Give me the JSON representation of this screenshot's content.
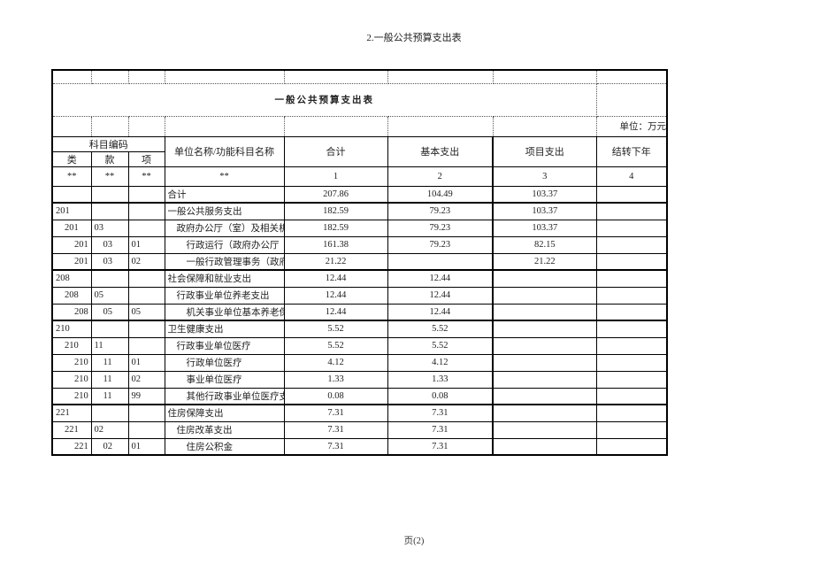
{
  "page": {
    "header_title": "2.一般公共预算支出表",
    "footer": "页(2)"
  },
  "table": {
    "title": "一般公共预算支出表",
    "unit_note": "单位：万元",
    "header": {
      "code_group": "科目编码",
      "code_cols": [
        "类",
        "款",
        "项"
      ],
      "name_col": "单位名称/功能科目名称",
      "value_cols": [
        "合计",
        "基本支出",
        "项目支出",
        "结转下年"
      ]
    },
    "mask_row": [
      "**",
      "**",
      "**",
      "**",
      "1",
      "2",
      "3",
      "4"
    ],
    "rows": [
      {
        "cls": "",
        "sec": "",
        "itm": "",
        "name": "合计",
        "level": 0,
        "total": "207.86",
        "basic": "104.49",
        "project": "103.37",
        "carry": "",
        "thick_top": false
      },
      {
        "cls": "201",
        "sec": "",
        "itm": "",
        "name": "一般公共服务支出",
        "level": 1,
        "total": "182.59",
        "basic": "79.23",
        "project": "103.37",
        "carry": "",
        "thick_top": true
      },
      {
        "cls": "201",
        "sec": "03",
        "itm": "",
        "name": "政府办公厅（室）及相关机",
        "level": 2,
        "total": "182.59",
        "basic": "79.23",
        "project": "103.37",
        "carry": "",
        "thick_top": false
      },
      {
        "cls": "201",
        "sec": "03",
        "itm": "01",
        "name": "行政运行（政府办公厅（",
        "level": 3,
        "total": "161.38",
        "basic": "79.23",
        "project": "82.15",
        "carry": "",
        "thick_top": false
      },
      {
        "cls": "201",
        "sec": "03",
        "itm": "02",
        "name": "一般行政管理事务（政府",
        "level": 3,
        "total": "21.22",
        "basic": "",
        "project": "21.22",
        "carry": "",
        "thick_top": false
      },
      {
        "cls": "208",
        "sec": "",
        "itm": "",
        "name": "社会保障和就业支出",
        "level": 1,
        "total": "12.44",
        "basic": "12.44",
        "project": "",
        "carry": "",
        "thick_top": true
      },
      {
        "cls": "208",
        "sec": "05",
        "itm": "",
        "name": "行政事业单位养老支出",
        "level": 2,
        "total": "12.44",
        "basic": "12.44",
        "project": "",
        "carry": "",
        "thick_top": false
      },
      {
        "cls": "208",
        "sec": "05",
        "itm": "05",
        "name": "机关事业单位基本养老保",
        "level": 3,
        "total": "12.44",
        "basic": "12.44",
        "project": "",
        "carry": "",
        "thick_top": false
      },
      {
        "cls": "210",
        "sec": "",
        "itm": "",
        "name": "卫生健康支出",
        "level": 1,
        "total": "5.52",
        "basic": "5.52",
        "project": "",
        "carry": "",
        "thick_top": true
      },
      {
        "cls": "210",
        "sec": "11",
        "itm": "",
        "name": "行政事业单位医疗",
        "level": 2,
        "total": "5.52",
        "basic": "5.52",
        "project": "",
        "carry": "",
        "thick_top": false
      },
      {
        "cls": "210",
        "sec": "11",
        "itm": "01",
        "name": "行政单位医疗",
        "level": 3,
        "total": "4.12",
        "basic": "4.12",
        "project": "",
        "carry": "",
        "thick_top": false
      },
      {
        "cls": "210",
        "sec": "11",
        "itm": "02",
        "name": "事业单位医疗",
        "level": 3,
        "total": "1.33",
        "basic": "1.33",
        "project": "",
        "carry": "",
        "thick_top": false
      },
      {
        "cls": "210",
        "sec": "11",
        "itm": "99",
        "name": "其他行政事业单位医疗支",
        "level": 3,
        "total": "0.08",
        "basic": "0.08",
        "project": "",
        "carry": "",
        "thick_top": false
      },
      {
        "cls": "221",
        "sec": "",
        "itm": "",
        "name": "住房保障支出",
        "level": 1,
        "total": "7.31",
        "basic": "7.31",
        "project": "",
        "carry": "",
        "thick_top": true
      },
      {
        "cls": "221",
        "sec": "02",
        "itm": "",
        "name": "住房改革支出",
        "level": 2,
        "total": "7.31",
        "basic": "7.31",
        "project": "",
        "carry": "",
        "thick_top": false
      },
      {
        "cls": "221",
        "sec": "02",
        "itm": "01",
        "name": "住房公积金",
        "level": 3,
        "total": "7.31",
        "basic": "7.31",
        "project": "",
        "carry": "",
        "thick_top": false
      }
    ]
  },
  "colors": {
    "border": "#000000",
    "text": "#1a1a1a",
    "background": "#ffffff"
  }
}
